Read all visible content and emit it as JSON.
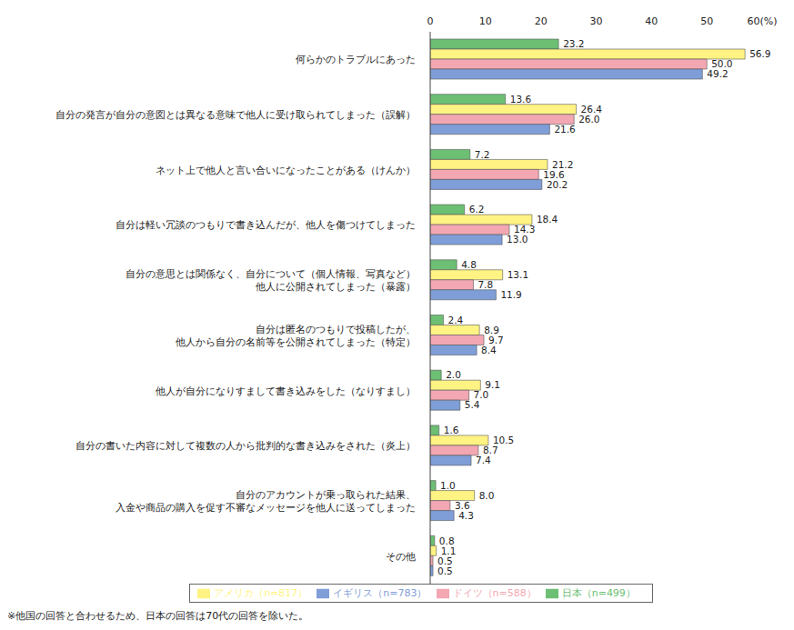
{
  "chart_data": {
    "type": "bar",
    "orientation": "horizontal",
    "grid": false,
    "data_labels": true,
    "legend": "bottom",
    "tick_labels": true,
    "annotations": [
      "※他国の回答と合わせるため、日本の回答は70代の回答を除いた。"
    ],
    "categories": [
      "何らかのトラブルにあった",
      "自分の発言が自分の意図とは異なる意味で他人に受け取られてしまった（誤解）",
      "ネット上で他人と言い合いになったことがある（けんか）",
      "自分は軽い冗談のつもりで書き込んだが、他人を傷つけてしまった",
      "自分の意思とは関係なく、自分について（個人情報、写真など）\n他人に公開されてしまった（暴露）",
      "自分は匿名のつもりで投稿したが、\n他人から自分の名前等を公開されてしまった（特定）",
      "他人が自分になりすまして書き込みをした（なりすまし）",
      "自分の書いた内容に対して複数の人から批判的な書き込みをされた（炎上）",
      "自分のアカウントが乗っ取られた結果、\n入金や商品の購入を促す不審なメッセージを他人に送ってしまった",
      "その他"
    ],
    "xlim": [
      0,
      60
    ],
    "xticks": [
      0,
      10,
      20,
      30,
      40,
      50,
      {
        "value": 60,
        "label": "60(%)"
      }
    ],
    "series": [
      {
        "name": "日本（n=499）",
        "color": "#6cbf73",
        "values": [
          23.2,
          13.6,
          7.2,
          6.2,
          4.8,
          2.4,
          2.0,
          1.6,
          1.0,
          0.8
        ],
        "value_labels": [
          "23.2",
          "13.6",
          "7.2",
          "6.2",
          "4.8",
          "2.4",
          "2.0",
          "1.6",
          "1.0",
          "0.8"
        ]
      },
      {
        "name": "アメリカ（n=817）",
        "color": "#fff383",
        "values": [
          56.9,
          26.4,
          21.2,
          18.4,
          13.1,
          8.9,
          9.1,
          10.5,
          8.0,
          1.1
        ],
        "value_labels": [
          "56.9",
          "26.4",
          "21.2",
          "18.4",
          "13.1",
          "8.9",
          "9.1",
          "10.5",
          "8.0",
          "1.1"
        ]
      },
      {
        "name": "ドイツ（n=588）",
        "color": "#f2a7b2",
        "values": [
          50.0,
          26.0,
          19.6,
          14.3,
          7.8,
          9.7,
          7.0,
          8.7,
          3.6,
          0.5
        ],
        "value_labels": [
          "50.0",
          "26.0",
          "19.6",
          "14.3",
          "7.8",
          "9.7",
          "7.0",
          "8.7",
          "3.6",
          "0.5"
        ]
      },
      {
        "name": "イギリス（n=783）",
        "color": "#7f9ed8",
        "values": [
          49.2,
          21.6,
          20.2,
          13.0,
          11.9,
          8.4,
          5.4,
          7.4,
          4.3,
          0.5
        ],
        "value_labels": [
          "49.2",
          "21.6",
          "20.2",
          "13.0",
          "11.9",
          "8.4",
          "5.4",
          "7.4",
          "4.3",
          "0.5"
        ]
      }
    ]
  }
}
